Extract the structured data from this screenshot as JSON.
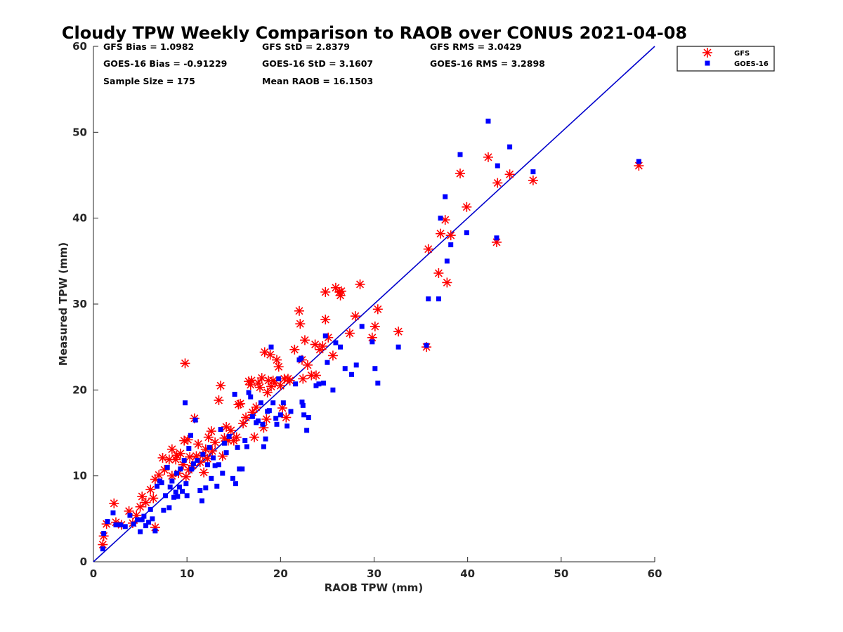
{
  "chart_data": {
    "type": "scatter",
    "title": "Cloudy TPW Weekly Comparison to RAOB over CONUS 2021-04-08",
    "xlabel": "RAOB TPW (mm)",
    "ylabel": "Measured TPW (mm)",
    "xlim": [
      0,
      60
    ],
    "ylim": [
      0,
      60
    ],
    "xticks": [
      0,
      10,
      20,
      30,
      40,
      50,
      60
    ],
    "yticks": [
      0,
      10,
      20,
      30,
      40,
      50,
      60
    ],
    "grid": false,
    "legend_position": "top-right, outside plot area",
    "stats": [
      "GFS Bias = 1.0982",
      "GFS StD = 2.8379",
      "GFS RMS = 3.0429",
      "GOES-16 Bias = -0.91229",
      "GOES-16 StD = 3.1607",
      "GOES-16 RMS = 3.2898",
      "Sample Size = 175",
      "Mean RAOB = 16.1503"
    ],
    "reference_line": {
      "from": [
        0,
        0
      ],
      "to": [
        60,
        60
      ],
      "color": "#0000cc"
    },
    "series": [
      {
        "name": "GFS",
        "marker": "asterisk",
        "color": "#ff0000",
        "points": [
          [
            1,
            2
          ],
          [
            1.1,
            3
          ],
          [
            1.4,
            4.4
          ],
          [
            2.2,
            6.8
          ],
          [
            2.4,
            4.6
          ],
          [
            3,
            4.3
          ],
          [
            3.8,
            5.9
          ],
          [
            4.2,
            4.5
          ],
          [
            4.6,
            5.4
          ],
          [
            5,
            6.4
          ],
          [
            5.2,
            7.6
          ],
          [
            5.6,
            6.9
          ],
          [
            6.1,
            8.4
          ],
          [
            6.4,
            7.4
          ],
          [
            6.6,
            9.6
          ],
          [
            6.6,
            4
          ],
          [
            7,
            10.1
          ],
          [
            7.4,
            12.1
          ],
          [
            7.6,
            10.7
          ],
          [
            8.1,
            11.9
          ],
          [
            8.4,
            10
          ],
          [
            8.4,
            13.1
          ],
          [
            8.8,
            11.9
          ],
          [
            8.9,
            12.4
          ],
          [
            9.1,
            10.3
          ],
          [
            9.3,
            12.6
          ],
          [
            9.6,
            11.3
          ],
          [
            9.7,
            14.1
          ],
          [
            9.8,
            23.1
          ],
          [
            9.9,
            9.9
          ],
          [
            10.1,
            14.2
          ],
          [
            10.2,
            10.7
          ],
          [
            10.3,
            12.2
          ],
          [
            10.6,
            11.2
          ],
          [
            10.8,
            16.7
          ],
          [
            11,
            12.3
          ],
          [
            11.2,
            13.7
          ],
          [
            11.4,
            11.6
          ],
          [
            11.7,
            12.4
          ],
          [
            11.8,
            10.4
          ],
          [
            12,
            13.1
          ],
          [
            12.2,
            12
          ],
          [
            12.3,
            14.5
          ],
          [
            12.6,
            15.2
          ],
          [
            12.7,
            12.9
          ],
          [
            13,
            13.9
          ],
          [
            13.4,
            18.8
          ],
          [
            13.6,
            20.5
          ],
          [
            13.8,
            12.3
          ],
          [
            14,
            14.4
          ],
          [
            14.2,
            15.7
          ],
          [
            14.4,
            14.1
          ],
          [
            14.7,
            15.3
          ],
          [
            15,
            14.1
          ],
          [
            15.3,
            14.5
          ],
          [
            15.5,
            18.3
          ],
          [
            15.7,
            18.4
          ],
          [
            16,
            16.1
          ],
          [
            16.3,
            16.8
          ],
          [
            16.6,
            21
          ],
          [
            16.8,
            20.6
          ],
          [
            16.9,
            21.1
          ],
          [
            17,
            17.4
          ],
          [
            17.2,
            14.5
          ],
          [
            17.4,
            18
          ],
          [
            17.6,
            20.8
          ],
          [
            17.8,
            20.3
          ],
          [
            18,
            21.4
          ],
          [
            18.2,
            15.6
          ],
          [
            18.3,
            24.4
          ],
          [
            18.5,
            16.6
          ],
          [
            18.6,
            19.7
          ],
          [
            18.7,
            21.1
          ],
          [
            18.9,
            24.1
          ],
          [
            19,
            20.4
          ],
          [
            19.2,
            21.1
          ],
          [
            19.4,
            20.8
          ],
          [
            19.6,
            23.5
          ],
          [
            19.8,
            22.7
          ],
          [
            20,
            20.5
          ],
          [
            20.2,
            17.9
          ],
          [
            20.4,
            21.3
          ],
          [
            20.6,
            16.8
          ],
          [
            20.8,
            21.3
          ],
          [
            21,
            21.1
          ],
          [
            21.5,
            24.7
          ],
          [
            22,
            29.2
          ],
          [
            22.1,
            27.7
          ],
          [
            22.3,
            23.5
          ],
          [
            22.4,
            21.3
          ],
          [
            22.6,
            25.8
          ],
          [
            22.9,
            22.9
          ],
          [
            23.3,
            21.7
          ],
          [
            23.7,
            25.3
          ],
          [
            23.8,
            21.7
          ],
          [
            24.2,
            24.7
          ],
          [
            24.5,
            25.1
          ],
          [
            24.8,
            28.2
          ],
          [
            24.8,
            31.4
          ],
          [
            25.1,
            26.1
          ],
          [
            25.6,
            24
          ],
          [
            25.9,
            31.9
          ],
          [
            26.3,
            31.4
          ],
          [
            26.4,
            31
          ],
          [
            26.5,
            31.5
          ],
          [
            27.4,
            26.6
          ],
          [
            28,
            28.6
          ],
          [
            28.5,
            32.3
          ],
          [
            29.8,
            26.1
          ],
          [
            30.1,
            27.4
          ],
          [
            30.4,
            29.4
          ],
          [
            32.6,
            26.8
          ],
          [
            35.6,
            25
          ],
          [
            35.8,
            36.4
          ],
          [
            36.9,
            33.6
          ],
          [
            37.1,
            38.2
          ],
          [
            37.6,
            39.8
          ],
          [
            37.8,
            32.5
          ],
          [
            38.2,
            38
          ],
          [
            39.2,
            45.2
          ],
          [
            39.9,
            41.3
          ],
          [
            42.2,
            47.1
          ],
          [
            43.1,
            37.2
          ],
          [
            43.2,
            44.1
          ],
          [
            44.5,
            45.1
          ],
          [
            47,
            44.4
          ],
          [
            58.3,
            46.1
          ]
        ]
      },
      {
        "name": "GOES-16",
        "marker": "square",
        "color": "#0000ff",
        "points": [
          [
            1,
            1.5
          ],
          [
            1.1,
            3.3
          ],
          [
            1.5,
            4.7
          ],
          [
            2.1,
            5.7
          ],
          [
            2.4,
            4.3
          ],
          [
            2.9,
            4.3
          ],
          [
            3.4,
            4.1
          ],
          [
            3.9,
            5.4
          ],
          [
            4.3,
            4.4
          ],
          [
            4.7,
            4.9
          ],
          [
            5,
            3.5
          ],
          [
            5.2,
            4.9
          ],
          [
            5.4,
            5.3
          ],
          [
            5.6,
            4.2
          ],
          [
            5.9,
            4.6
          ],
          [
            6.1,
            6.1
          ],
          [
            6.3,
            5
          ],
          [
            6.6,
            3.6
          ],
          [
            6.8,
            8.8
          ],
          [
            7.1,
            9.4
          ],
          [
            7.3,
            9.2
          ],
          [
            7.5,
            6
          ],
          [
            7.7,
            7.7
          ],
          [
            7.9,
            11
          ],
          [
            8.1,
            6.3
          ],
          [
            8.2,
            8.7
          ],
          [
            8.4,
            9.4
          ],
          [
            8.6,
            7.5
          ],
          [
            8.8,
            8.1
          ],
          [
            8.9,
            10.3
          ],
          [
            9,
            7.6
          ],
          [
            9.2,
            8.7
          ],
          [
            9.3,
            10.8
          ],
          [
            9.5,
            8.2
          ],
          [
            9.7,
            11.8
          ],
          [
            9.8,
            18.5
          ],
          [
            9.9,
            9.1
          ],
          [
            10,
            7.7
          ],
          [
            10.2,
            13.2
          ],
          [
            10.4,
            14.7
          ],
          [
            10.5,
            10.8
          ],
          [
            10.7,
            11.4
          ],
          [
            10.9,
            16.5
          ],
          [
            11.1,
            11.8
          ],
          [
            11.4,
            8.3
          ],
          [
            11.6,
            7.1
          ],
          [
            11.7,
            12.5
          ],
          [
            12,
            8.6
          ],
          [
            12.2,
            11.3
          ],
          [
            12.4,
            13.3
          ],
          [
            12.6,
            9.7
          ],
          [
            12.8,
            12.1
          ],
          [
            13,
            11.2
          ],
          [
            13.2,
            8.8
          ],
          [
            13.4,
            11.3
          ],
          [
            13.6,
            15.4
          ],
          [
            13.8,
            10.3
          ],
          [
            14,
            13.8
          ],
          [
            14.2,
            12.7
          ],
          [
            14.5,
            14.6
          ],
          [
            14.9,
            9.7
          ],
          [
            15.1,
            19.5
          ],
          [
            15.2,
            9.1
          ],
          [
            15.4,
            13.3
          ],
          [
            15.6,
            10.8
          ],
          [
            15.9,
            10.8
          ],
          [
            16.2,
            14.1
          ],
          [
            16.4,
            13.4
          ],
          [
            16.6,
            19.7
          ],
          [
            16.8,
            19.2
          ],
          [
            17,
            16.9
          ],
          [
            17.4,
            16.2
          ],
          [
            17.6,
            16.4
          ],
          [
            17.9,
            18.5
          ],
          [
            18.1,
            16
          ],
          [
            18.2,
            13.4
          ],
          [
            18.4,
            14.3
          ],
          [
            18.6,
            17.5
          ],
          [
            18.8,
            17.6
          ],
          [
            19,
            25
          ],
          [
            19.2,
            18.5
          ],
          [
            19.5,
            16.7
          ],
          [
            19.6,
            16
          ],
          [
            19.8,
            21.3
          ],
          [
            20,
            17.1
          ],
          [
            20.3,
            18.5
          ],
          [
            20.7,
            15.8
          ],
          [
            21.1,
            17.5
          ],
          [
            21.6,
            20.7
          ],
          [
            22,
            23.5
          ],
          [
            22.2,
            23.7
          ],
          [
            22.3,
            18.6
          ],
          [
            22.4,
            18.2
          ],
          [
            22.5,
            17.1
          ],
          [
            22.8,
            15.3
          ],
          [
            23,
            16.8
          ],
          [
            23.8,
            20.5
          ],
          [
            24.1,
            20.7
          ],
          [
            24.6,
            20.8
          ],
          [
            24.8,
            26.3
          ],
          [
            25,
            23.2
          ],
          [
            25.6,
            20
          ],
          [
            25.9,
            25.5
          ],
          [
            26.4,
            25
          ],
          [
            26.9,
            22.5
          ],
          [
            27.6,
            21.8
          ],
          [
            28.1,
            22.9
          ],
          [
            28.7,
            27.4
          ],
          [
            29.8,
            25.6
          ],
          [
            30.1,
            22.5
          ],
          [
            30.4,
            20.8
          ],
          [
            32.6,
            25
          ],
          [
            35.6,
            25.2
          ],
          [
            35.8,
            30.6
          ],
          [
            36.9,
            30.6
          ],
          [
            37.1,
            40
          ],
          [
            37.6,
            42.5
          ],
          [
            37.8,
            35
          ],
          [
            38.2,
            36.9
          ],
          [
            39.2,
            47.4
          ],
          [
            39.9,
            38.3
          ],
          [
            42.2,
            51.3
          ],
          [
            43.1,
            37.7
          ],
          [
            43.2,
            46.1
          ],
          [
            44.5,
            48.3
          ],
          [
            47,
            45.4
          ],
          [
            58.3,
            46.6
          ]
        ]
      }
    ]
  }
}
